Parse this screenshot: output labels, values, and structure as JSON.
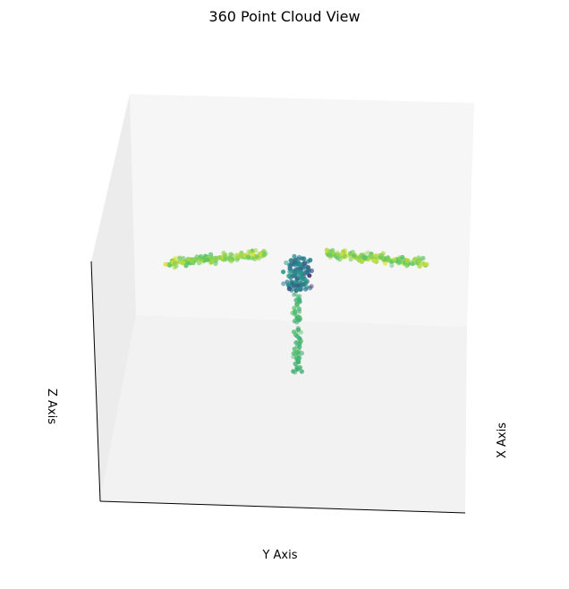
{
  "chart_data": {
    "type": "scatter",
    "projection": "3d",
    "title": "360 Point Cloud View",
    "xlabel": "X Axis",
    "ylabel": "Y Axis",
    "zlabel": "Z Axis",
    "ticks_visible": false,
    "grid": false,
    "colormap": "viridis",
    "point_cloud": {
      "description_shape": "T-shaped cloud: vertical stem with two arms spreading left and right at the top",
      "clusters": [
        {
          "name_part": "stem",
          "y": [
            -0.15,
            0.15
          ],
          "z": [
            0.0,
            0.55
          ],
          "color_value": [
            0.6,
            0.75
          ],
          "count": 70
        },
        {
          "name_part": "neck",
          "y": [
            -0.35,
            0.35
          ],
          "z": [
            0.55,
            0.75
          ],
          "color_value": [
            0.25,
            0.55
          ],
          "count": 120
        },
        {
          "name_part": "left-arm",
          "y": [
            -1.3,
            -0.3
          ],
          "z": [
            0.7,
            0.85
          ],
          "color_value": [
            0.7,
            0.95
          ],
          "count": 150
        },
        {
          "name_part": "right-arm",
          "y": [
            0.3,
            1.3
          ],
          "z": [
            0.7,
            0.88
          ],
          "color_value": [
            0.7,
            0.95
          ],
          "count": 150
        }
      ]
    }
  }
}
